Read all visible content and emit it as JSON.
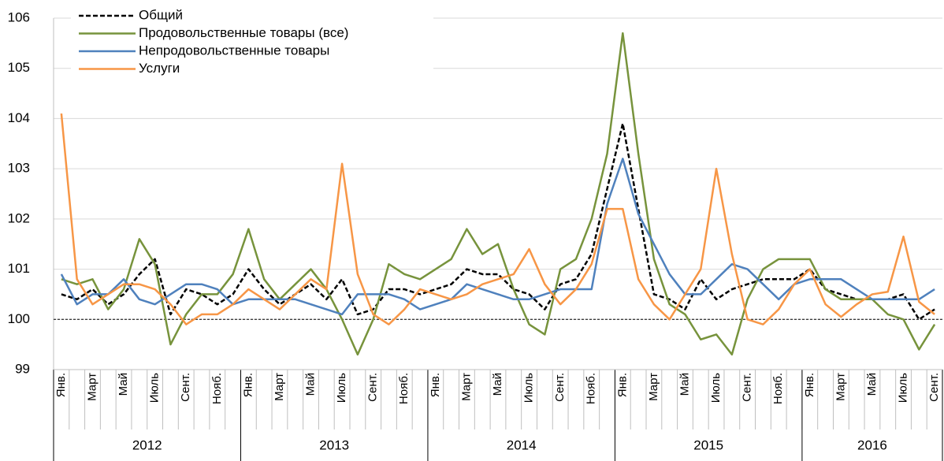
{
  "chart_data": {
    "type": "line",
    "categories": [
      "Янв.",
      null,
      "Март",
      null,
      "Май",
      null,
      "Июль",
      null,
      "Сент.",
      null,
      "Нояб.",
      null,
      "Янв.",
      null,
      "Март",
      null,
      "Май",
      null,
      "Июль",
      null,
      "Сент.",
      null,
      "Нояб.",
      null,
      "Янв.",
      null,
      "Март",
      null,
      "Май",
      null,
      "Июль",
      null,
      "Сент.",
      null,
      "Нояб.",
      null,
      "Янв.",
      null,
      "Март",
      null,
      "Май",
      null,
      "Июль",
      null,
      "Сент.",
      null,
      "Нояб.",
      null,
      "Янв.",
      null,
      "Март",
      null,
      "Май",
      null,
      "Июль",
      null,
      "Сент."
    ],
    "groups": [
      "2012",
      "2013",
      "2014",
      "2015",
      "2016"
    ],
    "series": [
      {
        "name": "Общий",
        "color": "#000000",
        "line_style": "dashed",
        "values": [
          100.5,
          100.4,
          100.6,
          100.3,
          100.5,
          100.9,
          101.2,
          100.1,
          100.6,
          100.5,
          100.3,
          100.5,
          101.0,
          100.6,
          100.3,
          100.5,
          100.7,
          100.4,
          100.8,
          100.1,
          100.2,
          100.6,
          100.6,
          100.5,
          100.6,
          100.7,
          101.0,
          100.9,
          100.9,
          100.6,
          100.5,
          100.2,
          100.7,
          100.8,
          101.3,
          102.6,
          103.9,
          102.2,
          100.5,
          100.4,
          100.2,
          100.8,
          100.4,
          100.6,
          100.7,
          100.8,
          100.8,
          100.8,
          101.0,
          100.6,
          100.5,
          100.4,
          100.4,
          100.4,
          100.5,
          100.0,
          100.2
        ]
      },
      {
        "name": "Продовольственные товары (все)",
        "color": "#77933c",
        "line_style": "solid",
        "values": [
          100.8,
          100.7,
          100.8,
          100.2,
          100.6,
          101.6,
          101.1,
          99.5,
          100.1,
          100.5,
          100.5,
          100.9,
          101.8,
          100.8,
          100.4,
          100.7,
          101.0,
          100.6,
          100.0,
          99.3,
          100.0,
          101.1,
          100.9,
          100.8,
          101.0,
          101.2,
          101.8,
          101.3,
          101.5,
          100.6,
          99.9,
          99.7,
          101.0,
          101.2,
          102.0,
          103.3,
          105.7,
          103.3,
          101.2,
          100.3,
          100.1,
          99.6,
          99.7,
          99.3,
          100.4,
          101.0,
          101.2,
          101.2,
          101.2,
          100.6,
          100.4,
          100.4,
          100.4,
          100.1,
          100.0,
          99.4,
          99.9
        ]
      },
      {
        "name": "Непродовольственные товары",
        "color": "#4f81bd",
        "line_style": "solid",
        "values": [
          100.9,
          100.3,
          100.5,
          100.5,
          100.8,
          100.4,
          100.3,
          100.5,
          100.7,
          100.7,
          100.6,
          100.3,
          100.4,
          100.4,
          100.4,
          100.4,
          100.3,
          100.2,
          100.1,
          100.5,
          100.5,
          100.5,
          100.4,
          100.2,
          100.3,
          100.4,
          100.7,
          100.6,
          100.5,
          100.4,
          100.4,
          100.5,
          100.6,
          100.6,
          100.6,
          102.3,
          103.2,
          102.1,
          101.5,
          100.9,
          100.5,
          100.5,
          100.8,
          101.1,
          101.0,
          100.7,
          100.4,
          100.7,
          100.8,
          100.8,
          100.8,
          100.6,
          100.4,
          100.4,
          100.4,
          100.4,
          100.6
        ]
      },
      {
        "name": "Услуги",
        "color": "#f79646",
        "line_style": "solid",
        "values": [
          104.1,
          100.8,
          100.3,
          100.5,
          100.7,
          100.7,
          100.6,
          100.3,
          99.9,
          100.1,
          100.1,
          100.3,
          100.6,
          100.4,
          100.2,
          100.5,
          100.8,
          100.6,
          103.1,
          100.9,
          100.1,
          99.9,
          100.2,
          100.6,
          100.5,
          100.4,
          100.5,
          100.7,
          100.8,
          100.9,
          101.4,
          100.7,
          100.3,
          100.6,
          101.1,
          102.2,
          102.2,
          100.8,
          100.3,
          100.0,
          100.5,
          101.0,
          103.0,
          101.3,
          100.0,
          99.9,
          100.2,
          100.7,
          101.0,
          100.3,
          100.05,
          100.3,
          100.5,
          100.55,
          101.65,
          100.35,
          100.1
        ]
      }
    ],
    "reference_line": 100,
    "ylim": [
      99,
      106
    ],
    "yticks": [
      99,
      100,
      101,
      102,
      103,
      104,
      105,
      106
    ],
    "grid": true,
    "legend": "top-left"
  }
}
